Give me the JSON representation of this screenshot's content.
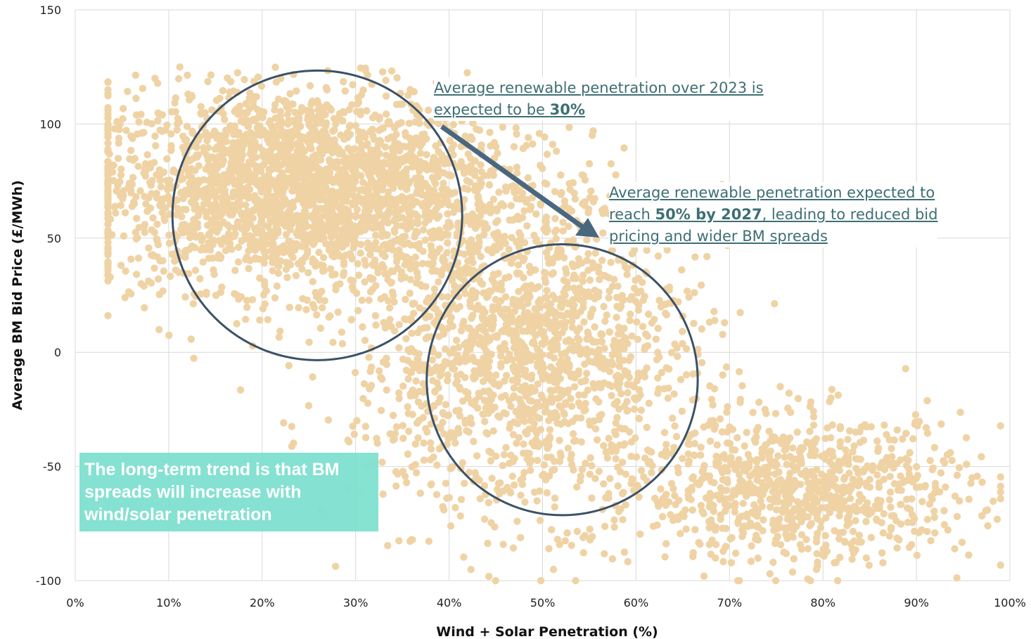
{
  "chart_data": {
    "type": "scatter",
    "xlabel": "Wind + Solar Penetration (%)",
    "ylabel": "Average BM Bid Price (£/MWh)",
    "xlim": [
      0,
      100
    ],
    "ylim": [
      -100,
      150
    ],
    "x_ticks": [
      "0%",
      "10%",
      "20%",
      "30%",
      "40%",
      "50%",
      "60%",
      "70%",
      "80%",
      "90%",
      "100%"
    ],
    "y_ticks": [
      "150",
      "100",
      "50",
      "0",
      "-50",
      "-100"
    ],
    "grid": true,
    "point_color": "#efd3a5",
    "clusters": [
      {
        "x_center": 24,
        "y_center": 72,
        "x_spread": 11,
        "y_spread": 22
      },
      {
        "x_center": 48,
        "y_center": 0,
        "x_spread": 9,
        "y_spread": 35
      },
      {
        "x_center": 78,
        "y_center": -60,
        "x_spread": 9,
        "y_spread": 16
      }
    ],
    "circles": [
      {
        "x_center": 25.9,
        "y_center": 60,
        "radius_x": 15.5
      },
      {
        "x_center": 52.1,
        "y_center": -12,
        "radius_x": 14.5
      }
    ],
    "annotations": {
      "note_2023_line1": "Average renewable penetration over 2023 is",
      "note_2023_line2_prefix": "expected to be ",
      "note_2023_line2_bold": "30%",
      "note_2027_line1": "Average renewable penetration expected to",
      "note_2027_line2_prefix": "reach ",
      "note_2027_line2_bold": "50% by 2027",
      "note_2027_line2_suffix": ", leading to reduced bid",
      "note_2027_line3": "pricing and wider BM spreads",
      "trend_text": "The long-term trend is that BM spreads will increase with wind/solar penetration"
    },
    "colors": {
      "arrow": "#49677f",
      "circle": "#3b5166",
      "trend_bg": "#7fe0cf",
      "annot_text": "#3d6f74"
    }
  }
}
